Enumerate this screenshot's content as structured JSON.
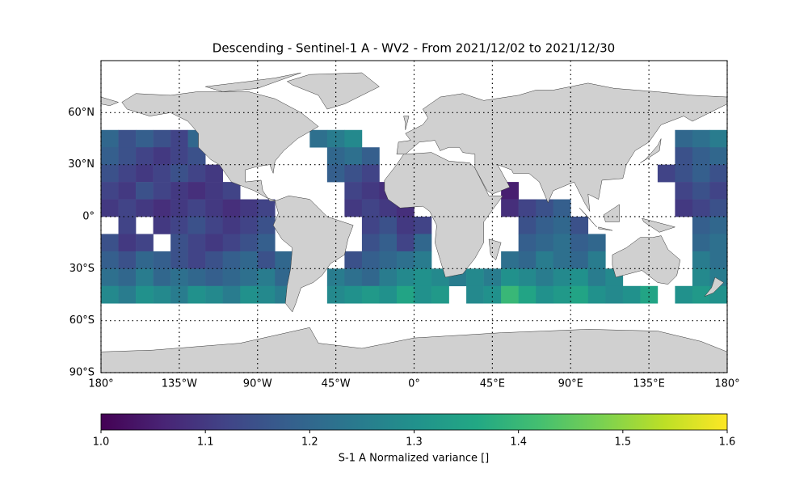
{
  "chart_data": {
    "type": "heatmap-map",
    "title": "Descending - Sentinel-1 A - WV2 - From 2021/12/02 to 2021/12/30",
    "colorbar_label": "S-1 A Normalized variance []",
    "colormap": "viridis",
    "clim": [
      1.0,
      1.6
    ],
    "cticks": [
      {
        "value": 1.0,
        "label": "1.0"
      },
      1.1,
      1.2,
      1.3,
      1.4,
      1.5,
      1.6
    ],
    "xlim": [
      -180,
      180
    ],
    "ylim": [
      -90,
      90
    ],
    "xticks": [
      {
        "value": -180,
        "label": "180°"
      },
      {
        "value": -135,
        "label": "135°W"
      },
      {
        "value": -90,
        "label": "90°W"
      },
      {
        "value": -45,
        "label": "45°W"
      },
      {
        "value": 0,
        "label": "0°"
      },
      {
        "value": 45,
        "label": "45°E"
      },
      {
        "value": 90,
        "label": "90°E"
      },
      {
        "value": 135,
        "label": "135°E"
      },
      {
        "value": 180,
        "label": "180°"
      }
    ],
    "yticks": [
      {
        "value": -90,
        "label": "90°S"
      },
      {
        "value": -60,
        "label": "60°S"
      },
      {
        "value": -30,
        "label": "30°S"
      },
      {
        "value": 0,
        "label": "0°"
      },
      {
        "value": 30,
        "label": "30°N"
      },
      {
        "value": 60,
        "label": "60°N"
      }
    ],
    "grid": true,
    "x": [
      -175,
      -165,
      -155,
      -145,
      -135,
      -125,
      -115,
      -105,
      -95,
      -85,
      -75,
      -65,
      -55,
      -45,
      -35,
      -25,
      -15,
      -5,
      5,
      15,
      25,
      35,
      45,
      55,
      65,
      75,
      85,
      95,
      105,
      115,
      125,
      135,
      145,
      155,
      165,
      175
    ],
    "y": [
      45,
      35,
      25,
      15,
      5,
      -5,
      -15,
      -25,
      -35,
      -45
    ],
    "values": [
      [
        1.2,
        1.15,
        1.18,
        1.15,
        1.12,
        1.2,
        null,
        null,
        null,
        null,
        null,
        null,
        1.22,
        1.25,
        1.28,
        null,
        null,
        null,
        null,
        null,
        null,
        null,
        null,
        null,
        null,
        null,
        null,
        null,
        null,
        null,
        null,
        null,
        null,
        1.2,
        1.22,
        1.25
      ],
      [
        1.18,
        1.15,
        1.12,
        1.1,
        1.12,
        1.15,
        null,
        null,
        null,
        null,
        null,
        null,
        null,
        1.2,
        1.22,
        1.18,
        null,
        null,
        null,
        null,
        null,
        null,
        null,
        null,
        null,
        null,
        null,
        null,
        null,
        null,
        null,
        null,
        null,
        1.15,
        1.18,
        1.2
      ],
      [
        1.15,
        1.12,
        1.1,
        1.12,
        1.15,
        1.12,
        1.1,
        null,
        null,
        null,
        null,
        null,
        null,
        1.18,
        1.15,
        1.12,
        null,
        null,
        null,
        null,
        null,
        null,
        null,
        null,
        null,
        null,
        null,
        null,
        null,
        null,
        null,
        null,
        1.12,
        1.15,
        1.18,
        1.15
      ],
      [
        1.12,
        1.1,
        1.15,
        1.12,
        1.1,
        1.08,
        1.1,
        1.12,
        null,
        null,
        null,
        null,
        null,
        null,
        1.12,
        1.1,
        1.08,
        null,
        null,
        null,
        null,
        null,
        null,
        1.05,
        null,
        null,
        null,
        null,
        null,
        null,
        null,
        null,
        null,
        1.12,
        1.15,
        1.12
      ],
      [
        1.1,
        1.12,
        1.1,
        1.08,
        1.1,
        1.12,
        1.1,
        1.08,
        1.1,
        1.12,
        null,
        null,
        null,
        null,
        1.1,
        1.12,
        1.1,
        1.08,
        null,
        null,
        null,
        null,
        null,
        1.08,
        1.12,
        1.15,
        1.18,
        null,
        null,
        null,
        null,
        null,
        null,
        1.1,
        1.12,
        1.15
      ],
      [
        null,
        1.12,
        null,
        1.1,
        1.12,
        1.15,
        1.12,
        1.1,
        1.12,
        1.15,
        null,
        null,
        null,
        null,
        null,
        1.12,
        1.15,
        1.1,
        1.12,
        null,
        null,
        null,
        null,
        null,
        1.15,
        1.18,
        1.2,
        1.15,
        null,
        null,
        null,
        null,
        null,
        null,
        1.18,
        1.2
      ],
      [
        1.15,
        1.1,
        1.12,
        null,
        1.15,
        1.12,
        1.1,
        1.12,
        1.15,
        1.18,
        null,
        null,
        null,
        null,
        null,
        1.15,
        1.18,
        1.12,
        1.2,
        null,
        null,
        null,
        null,
        null,
        1.18,
        1.2,
        1.22,
        1.18,
        1.2,
        null,
        null,
        null,
        null,
        null,
        1.2,
        1.22
      ],
      [
        1.18,
        1.15,
        1.2,
        1.18,
        1.15,
        1.12,
        1.15,
        1.18,
        1.2,
        1.15,
        1.2,
        null,
        null,
        null,
        1.15,
        1.18,
        1.2,
        1.22,
        1.25,
        null,
        null,
        null,
        null,
        1.22,
        1.2,
        1.25,
        1.22,
        1.2,
        1.25,
        null,
        null,
        null,
        null,
        null,
        1.25,
        1.22
      ],
      [
        1.22,
        1.2,
        1.25,
        1.2,
        1.22,
        1.2,
        1.18,
        1.2,
        1.22,
        1.25,
        1.2,
        null,
        null,
        1.25,
        1.22,
        1.2,
        1.25,
        1.28,
        1.3,
        1.28,
        1.25,
        1.28,
        1.25,
        1.3,
        1.28,
        1.25,
        1.28,
        1.3,
        1.25,
        1.28,
        null,
        null,
        null,
        null,
        1.28,
        1.25
      ],
      [
        1.28,
        1.25,
        1.3,
        1.28,
        1.25,
        1.3,
        1.28,
        1.25,
        1.3,
        1.28,
        1.25,
        null,
        null,
        1.28,
        1.3,
        1.32,
        1.3,
        1.35,
        1.3,
        1.32,
        null,
        1.28,
        1.3,
        1.4,
        1.35,
        1.3,
        1.32,
        1.35,
        1.3,
        1.28,
        1.3,
        1.35,
        null,
        1.3,
        1.32,
        1.3
      ]
    ]
  }
}
